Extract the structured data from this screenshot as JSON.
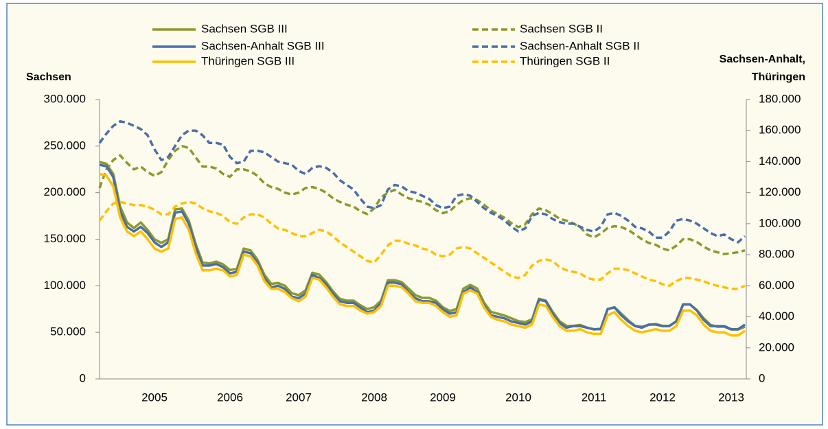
{
  "chart_data": {
    "type": "line",
    "y_label": "Sachsen",
    "y2_label": [
      "Sachsen-Anhalt,",
      "Thüringen"
    ],
    "legend": "top",
    "categories": [
      null,
      null,
      null,
      null,
      null,
      null,
      null,
      null,
      "2005",
      null,
      null,
      null,
      null,
      null,
      null,
      null,
      null,
      null,
      null,
      "2006",
      null,
      null,
      null,
      null,
      null,
      null,
      null,
      null,
      null,
      "2007",
      null,
      null,
      null,
      null,
      null,
      null,
      null,
      null,
      null,
      null,
      "2008",
      null,
      null,
      null,
      null,
      null,
      null,
      null,
      null,
      null,
      "2009",
      null,
      null,
      null,
      null,
      null,
      null,
      null,
      null,
      null,
      null,
      "2010",
      null,
      null,
      null,
      null,
      null,
      null,
      null,
      null,
      null,
      null,
      "2011",
      null,
      null,
      null,
      null,
      null,
      null,
      null,
      null,
      null,
      "2012",
      null,
      null,
      null,
      null,
      null,
      null,
      null,
      null,
      null,
      "2013",
      null,
      null
    ],
    "ylim": [
      0,
      300000
    ],
    "yticks": [
      {
        "value": 0,
        "label": "0"
      },
      {
        "value": 50000,
        "label": "50.000"
      },
      {
        "value": 100000,
        "label": "100.000"
      },
      {
        "value": 150000,
        "label": "150.000"
      },
      {
        "value": 200000,
        "label": "200.000"
      },
      {
        "value": 250000,
        "label": "250.000"
      },
      {
        "value": 300000,
        "label": "300.000"
      }
    ],
    "y2lim": [
      0,
      180000
    ],
    "y2ticks": [
      {
        "value": 0,
        "label": "0"
      },
      {
        "value": 20000,
        "label": "20.000"
      },
      {
        "value": 40000,
        "label": "40.000"
      },
      {
        "value": 60000,
        "label": "60.000"
      },
      {
        "value": 80000,
        "label": "80.000"
      },
      {
        "value": 100000,
        "label": "100.000"
      },
      {
        "value": 120000,
        "label": "120.000"
      },
      {
        "value": 140000,
        "label": "140.000"
      },
      {
        "value": 160000,
        "label": "160.000"
      },
      {
        "value": 180000,
        "label": "180.000"
      }
    ],
    "series": [
      {
        "name": "Sachsen SGB III",
        "color": "#8a9a2b",
        "line_style": "solid",
        "axis": "y",
        "values": [
          233000,
          231000,
          220000,
          185000,
          168000,
          162000,
          168000,
          160000,
          150000,
          146000,
          150000,
          182000,
          183000,
          170000,
          145000,
          125000,
          124000,
          126000,
          123000,
          117000,
          118000,
          140000,
          138000,
          128000,
          112000,
          102000,
          103000,
          100000,
          92000,
          90000,
          95000,
          114000,
          112000,
          104000,
          94000,
          86000,
          84000,
          84000,
          79000,
          75000,
          77000,
          84000,
          106000,
          106000,
          104000,
          97000,
          90000,
          87000,
          87000,
          84000,
          77000,
          73000,
          75000,
          97000,
          101000,
          97000,
          82000,
          72000,
          70000,
          68000,
          65000,
          62000,
          61000,
          64000,
          86000,
          84000,
          72000,
          62000,
          57000,
          57000,
          58000,
          55000,
          53000,
          54000,
          75000,
          77000,
          70000,
          63000,
          57000,
          56000,
          58000,
          59000,
          57000,
          57000,
          62000,
          80000,
          80000,
          74000,
          65000,
          58000,
          56000,
          56000,
          53000,
          53000,
          56000
        ]
      },
      {
        "name": "Sachsen SGB II",
        "color": "#8a9a2b",
        "line_style": "dashed",
        "axis": "y",
        "values": [
          205000,
          225000,
          235000,
          240000,
          232000,
          225000,
          228000,
          222000,
          218000,
          222000,
          235000,
          245000,
          250000,
          248000,
          238000,
          228000,
          228000,
          226000,
          220000,
          217000,
          225000,
          225000,
          223000,
          218000,
          210000,
          206000,
          204000,
          200000,
          198000,
          200000,
          205000,
          206000,
          204000,
          200000,
          194000,
          190000,
          187000,
          185000,
          180000,
          177000,
          183000,
          195000,
          200000,
          203000,
          198000,
          194000,
          192000,
          190000,
          187000,
          181000,
          178000,
          180000,
          187000,
          192000,
          194000,
          192000,
          187000,
          181000,
          177000,
          173000,
          167000,
          163000,
          166000,
          177000,
          183000,
          181000,
          177000,
          172000,
          170000,
          167000,
          163000,
          155000,
          152000,
          156000,
          162000,
          164000,
          163000,
          160000,
          155000,
          150000,
          146000,
          144000,
          140000,
          138000,
          143000,
          150000,
          150000,
          147000,
          142000,
          138000,
          136000,
          134000,
          135000,
          136000,
          138000
        ]
      },
      {
        "name": "Sachsen-Anhalt SGB III",
        "color": "#4a6ea8",
        "line_style": "solid",
        "axis": "y2",
        "values": [
          138000,
          137000,
          130000,
          108000,
          98000,
          95000,
          98000,
          94000,
          88000,
          85000,
          88000,
          107000,
          108000,
          100000,
          85000,
          73000,
          73000,
          74000,
          72000,
          68000,
          69000,
          82000,
          81000,
          75000,
          65000,
          59000,
          60000,
          58000,
          53000,
          52000,
          55000,
          67000,
          65000,
          61000,
          55000,
          50000,
          49000,
          49000,
          46000,
          43000,
          44000,
          49000,
          62000,
          62000,
          61000,
          56000,
          52000,
          50000,
          50000,
          49000,
          45000,
          42000,
          43000,
          56000,
          59000,
          56000,
          47000,
          41000,
          40000,
          39000,
          37000,
          36000,
          35000,
          37000,
          51000,
          50000,
          42000,
          36000,
          33000,
          34000,
          34000,
          33000,
          32000,
          32000,
          45000,
          46000,
          41000,
          37000,
          34000,
          33000,
          35000,
          35000,
          34000,
          34000,
          37000,
          48000,
          48000,
          44000,
          38000,
          34000,
          34000,
          34000,
          32000,
          32000,
          35000
        ]
      },
      {
        "name": "Sachsen-Anhalt SGB II",
        "color": "#4a6ea8",
        "line_style": "dashed",
        "axis": "y2",
        "values": [
          152000,
          158000,
          163000,
          166000,
          165000,
          163000,
          161000,
          157000,
          148000,
          141000,
          143000,
          150000,
          157000,
          160000,
          160000,
          157000,
          152000,
          152000,
          151000,
          143000,
          139000,
          140000,
          147000,
          147000,
          146000,
          143000,
          140000,
          139000,
          138000,
          134000,
          132000,
          136000,
          137000,
          136000,
          133000,
          128000,
          125000,
          122000,
          116000,
          111000,
          110000,
          112000,
          122000,
          125000,
          124000,
          121000,
          120000,
          118000,
          116000,
          112000,
          110000,
          111000,
          118000,
          119000,
          118000,
          114000,
          110000,
          107000,
          105000,
          102000,
          98000,
          95000,
          97000,
          105000,
          107000,
          106000,
          103000,
          101000,
          100000,
          100000,
          98000,
          96000,
          95000,
          98000,
          106000,
          107000,
          105000,
          102000,
          98000,
          97000,
          95000,
          91000,
          91000,
          95000,
          102000,
          103000,
          102000,
          100000,
          97000,
          94000,
          92000,
          93000,
          90000,
          88000,
          92000
        ]
      },
      {
        "name": "Thüringen SGB III",
        "color": "#ffc000",
        "line_style": "solid",
        "axis": "y2",
        "values": [
          132000,
          131000,
          124000,
          104000,
          95000,
          92000,
          95000,
          90000,
          84000,
          82000,
          84000,
          103000,
          104000,
          96000,
          81000,
          70000,
          70000,
          71000,
          70000,
          66000,
          67000,
          80000,
          79000,
          73000,
          63000,
          58000,
          58000,
          56000,
          52000,
          50000,
          53000,
          65000,
          64000,
          59000,
          53000,
          48000,
          47000,
          47000,
          44000,
          42000,
          43000,
          47000,
          60000,
          60000,
          59000,
          55000,
          50000,
          49000,
          49000,
          47000,
          43000,
          40000,
          41000,
          55000,
          57000,
          55000,
          46000,
          40000,
          38000,
          37000,
          35000,
          34000,
          33000,
          35000,
          48000,
          47000,
          40000,
          34000,
          31000,
          31000,
          32000,
          30000,
          29000,
          29000,
          41000,
          43000,
          38000,
          34000,
          31000,
          30000,
          31000,
          32000,
          31000,
          31000,
          34000,
          44000,
          44000,
          41000,
          35000,
          31000,
          30000,
          30000,
          28000,
          28000,
          31000
        ]
      },
      {
        "name": "Thüringen SGB II",
        "color": "#ffc000",
        "line_style": "dashed",
        "axis": "y2",
        "values": [
          102000,
          108000,
          113000,
          114000,
          113000,
          112000,
          112000,
          111000,
          109000,
          106000,
          106000,
          111000,
          113000,
          114000,
          113000,
          110000,
          108000,
          107000,
          105000,
          101000,
          100000,
          104000,
          106000,
          106000,
          104000,
          100000,
          97000,
          96000,
          94000,
          92000,
          92000,
          94000,
          96000,
          95000,
          92000,
          88000,
          85000,
          82000,
          79000,
          76000,
          75000,
          80000,
          86000,
          89000,
          89000,
          87000,
          86000,
          84000,
          83000,
          80000,
          79000,
          80000,
          84000,
          85000,
          84000,
          81000,
          78000,
          75000,
          72000,
          69000,
          66000,
          65000,
          67000,
          73000,
          76000,
          77000,
          76000,
          72000,
          70000,
          69000,
          68000,
          65000,
          64000,
          64000,
          68000,
          71000,
          71000,
          70000,
          68000,
          66000,
          64000,
          63000,
          61000,
          60000,
          63000,
          65000,
          65000,
          64000,
          63000,
          61000,
          60000,
          59000,
          58000,
          58000,
          60000
        ]
      }
    ]
  }
}
